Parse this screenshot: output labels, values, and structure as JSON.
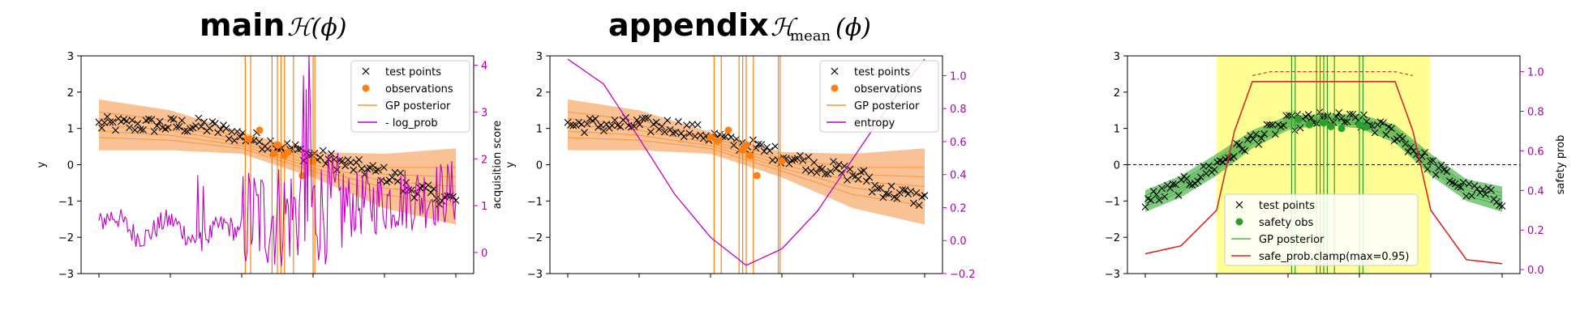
{
  "colors": {
    "orange": "#ff7f0e",
    "orange_band": "#f7ad71",
    "magenta": "#c000c0",
    "green": "#2ca02c",
    "green_band": "#5cb85c",
    "red": "#d62728",
    "yellow": "#ffff80",
    "points": "#000000"
  },
  "chart_data": [
    {
      "id": "main",
      "type": "line",
      "title": "main",
      "title_math": "ℋ(ϕ)",
      "xlabel": "",
      "ylabel": "y",
      "ylabel_right": "acquisition score",
      "ylim": [
        -3,
        3
      ],
      "yticks": [
        "3",
        "2",
        "1",
        "0",
        "−1",
        "−2",
        "−3"
      ],
      "ylim_right": [
        -0.45,
        4.2
      ],
      "yticks_right": [
        "4",
        "3",
        "2",
        "1",
        "0"
      ],
      "xlim": [
        -0.05,
        1.05
      ],
      "legend": [
        "test points",
        "observations",
        "GP posterior",
        "- log_prob"
      ],
      "legend_position": "upper right",
      "observations_x": [
        0.42,
        0.45,
        0.49,
        0.5,
        0.52,
        0.53,
        0.57,
        0.6
      ],
      "observations_y": [
        0.7,
        0.95,
        0.3,
        0.55,
        0.25,
        0.35,
        -0.3,
        0.1
      ],
      "vertical_lines_x": [
        0.41,
        0.425,
        0.485,
        0.5,
        0.51,
        0.52,
        0.545,
        0.6,
        0.605
      ],
      "gp_mean_x": [
        0,
        0.2,
        0.4,
        0.6,
        0.8,
        1.0
      ],
      "gp_mean_y": [
        1.1,
        0.95,
        0.6,
        0.0,
        -0.45,
        -0.6
      ],
      "gp_std": [
        0.7,
        0.55,
        0.3,
        0.35,
        0.75,
        1.05
      ]
    },
    {
      "id": "appendix",
      "type": "line",
      "title": "appendix",
      "title_math": "ℋ",
      "title_math_sub": "mean",
      "title_math_tail": "(ϕ)",
      "xlabel": "",
      "ylabel": "y",
      "ylim": [
        -3,
        3
      ],
      "yticks": [
        "3",
        "2",
        "1",
        "0",
        "−1",
        "−2",
        "−3"
      ],
      "ylim_right": [
        -0.2,
        1.12
      ],
      "yticks_right": [
        "1.0",
        "0.8",
        "0.6",
        "0.4",
        "0.2",
        "0.0",
        "−0.2"
      ],
      "xlim": [
        -0.05,
        1.05
      ],
      "legend": [
        "test points",
        "observations",
        "GP posterior",
        "entropy"
      ],
      "legend_position": "upper right",
      "observations_x": [
        0.4,
        0.42,
        0.45,
        0.49,
        0.5,
        0.51,
        0.53,
        0.6
      ],
      "observations_y": [
        0.75,
        0.65,
        0.95,
        0.4,
        0.55,
        0.25,
        -0.3,
        0.1
      ],
      "vertical_lines_x": [
        0.41,
        0.43,
        0.48,
        0.49,
        0.5,
        0.52,
        0.59,
        0.595
      ],
      "entropy_x": [
        0,
        0.1,
        0.2,
        0.3,
        0.4,
        0.5,
        0.6,
        0.7,
        0.8,
        0.9,
        1.0
      ],
      "entropy_y": [
        1.1,
        0.95,
        0.62,
        0.28,
        0.02,
        -0.15,
        -0.05,
        0.18,
        0.5,
        0.82,
        1.1
      ],
      "gp_mean_x": [
        0,
        0.2,
        0.4,
        0.6,
        0.8,
        1.0
      ],
      "gp_mean_y": [
        1.1,
        0.95,
        0.6,
        0.0,
        -0.45,
        -0.6
      ],
      "gp_std": [
        0.7,
        0.55,
        0.3,
        0.35,
        0.75,
        1.05
      ]
    },
    {
      "id": "safety",
      "type": "line",
      "title": "",
      "xlabel": "",
      "ylabel": "",
      "ylabel_right": "safety prob",
      "ylim": [
        -3,
        3
      ],
      "yticks": [
        "3",
        "2",
        "1",
        "0",
        "−1",
        "−2",
        "−3"
      ],
      "ylim_right": [
        -0.02,
        1.08
      ],
      "yticks_right": [
        "1.0",
        "0.8",
        "0.6",
        "0.4",
        "0.2",
        "0.0"
      ],
      "xlim": [
        -0.05,
        1.05
      ],
      "legend": [
        "test points",
        "safety obs",
        "GP posterior",
        "safe_prob.clamp(max=0.95)"
      ],
      "legend_position": "lower center",
      "safe_region_x": [
        0.2,
        0.8
      ],
      "safety_obs_x": [
        0.43,
        0.46,
        0.5,
        0.52,
        0.55,
        0.6,
        0.62
      ],
      "safety_obs_y": [
        1.25,
        1.1,
        1.15,
        1.05,
        1.0,
        1.1,
        1.05
      ],
      "vertical_lines_x": [
        0.41,
        0.42,
        0.48,
        0.49,
        0.5,
        0.51,
        0.53,
        0.6,
        0.61
      ],
      "gp_mean_x": [
        0,
        0.1,
        0.2,
        0.3,
        0.4,
        0.5,
        0.6,
        0.7,
        0.8,
        0.9,
        1.0
      ],
      "gp_mean_y": [
        -1.0,
        -0.6,
        0.0,
        0.7,
        1.15,
        1.25,
        1.2,
        0.85,
        0.0,
        -0.7,
        -0.95
      ],
      "gp_std": [
        0.3,
        0.3,
        0.3,
        0.25,
        0.2,
        0.15,
        0.2,
        0.25,
        0.3,
        0.3,
        0.35
      ],
      "safe_prob_x": [
        0,
        0.1,
        0.2,
        0.25,
        0.3,
        0.7,
        0.75,
        0.8,
        0.9,
        1.0
      ],
      "safe_prob_y": [
        0.08,
        0.12,
        0.3,
        0.7,
        0.95,
        0.95,
        0.7,
        0.3,
        0.05,
        0.03
      ],
      "dashed_prob_x": [
        0.3,
        0.35,
        0.5,
        0.7,
        0.75
      ],
      "dashed_prob_y": [
        0.98,
        1.0,
        1.0,
        1.0,
        0.98
      ],
      "hline_y": 0
    }
  ]
}
